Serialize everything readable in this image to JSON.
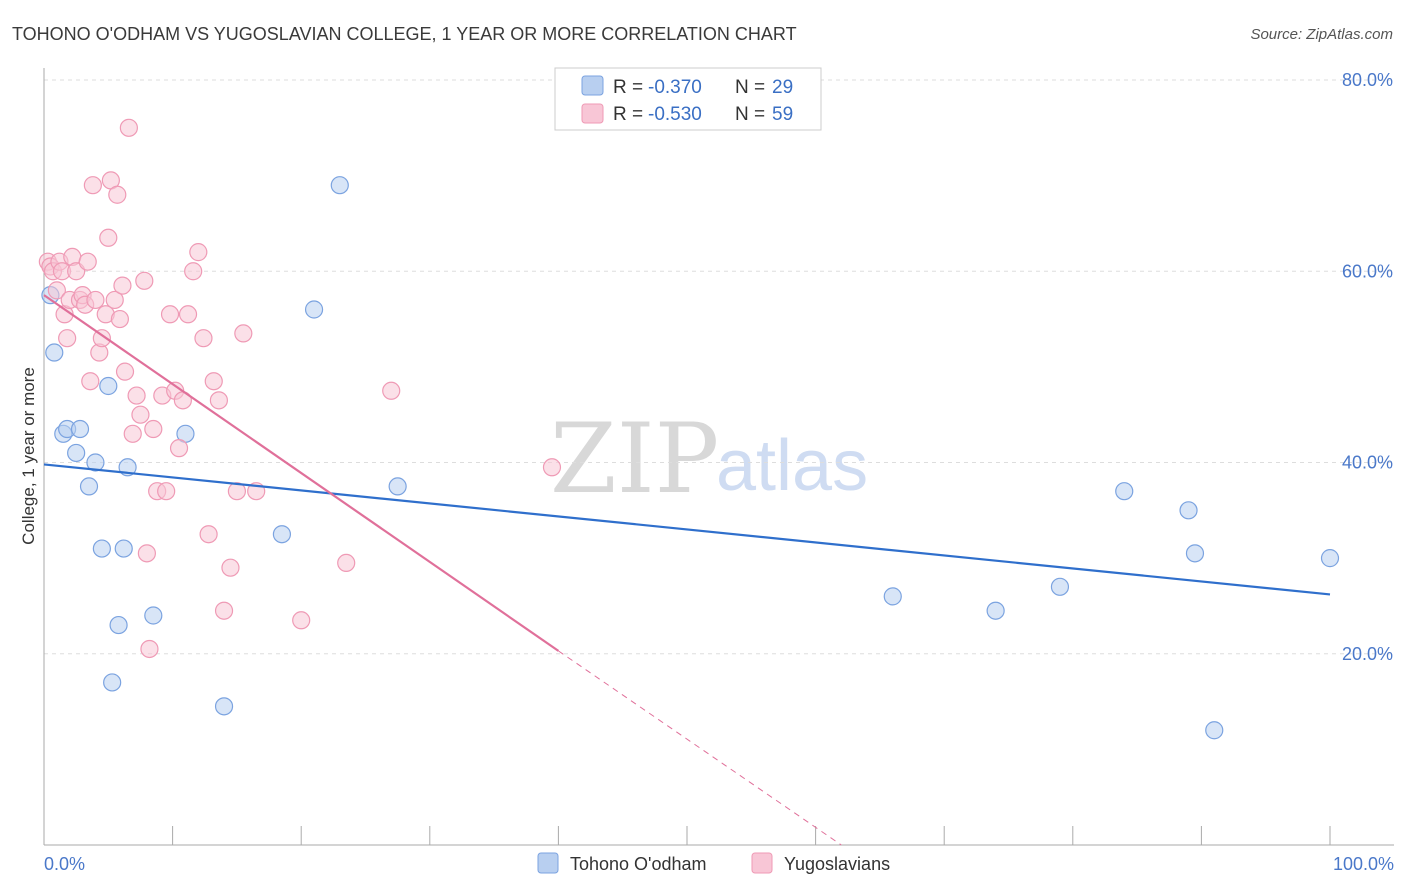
{
  "chart_data": {
    "type": "scatter",
    "title": "TOHONO O'ODHAM VS YUGOSLAVIAN COLLEGE, 1 YEAR OR MORE CORRELATION CHART",
    "source": "Source: ZipAtlas.com",
    "xlabel": "",
    "ylabel": "College, 1 year or more",
    "xlim": [
      0,
      100
    ],
    "ylim": [
      0,
      80
    ],
    "x_tick_labels": [
      "0.0%",
      "100.0%"
    ],
    "y_ticks": [
      {
        "value": 20,
        "label": "20.0%"
      },
      {
        "value": 40,
        "label": "40.0%"
      },
      {
        "value": 60,
        "label": "60.0%"
      },
      {
        "value": 80,
        "label": "80.0%"
      }
    ],
    "watermark": {
      "part1": "ZIP",
      "part2": "atlas"
    },
    "legend": {
      "r_label": "R = ",
      "n_label": "N = ",
      "entries": [
        {
          "r": "-0.370",
          "n": "29"
        },
        {
          "r": "-0.530",
          "n": "59"
        }
      ]
    },
    "series": [
      {
        "name": "Tohono O'odham",
        "color": "#7ba3e0",
        "fill": "#b8cff0",
        "line_color": "#2f6fcc",
        "trend": {
          "x0": 0,
          "y0": 39.8,
          "x1": 100,
          "y1": 26.2
        },
        "points": [
          [
            0.5,
            57.5
          ],
          [
            0.8,
            51.5
          ],
          [
            1.5,
            43.0
          ],
          [
            1.8,
            43.5
          ],
          [
            2.5,
            41.0
          ],
          [
            2.8,
            43.5
          ],
          [
            3.5,
            37.5
          ],
          [
            4.0,
            40.0
          ],
          [
            4.5,
            31.0
          ],
          [
            5.3,
            17.0
          ],
          [
            5.8,
            23.0
          ],
          [
            6.2,
            31.0
          ],
          [
            6.5,
            39.5
          ],
          [
            8.5,
            24.0
          ],
          [
            11.0,
            43.0
          ],
          [
            14.0,
            14.5
          ],
          [
            18.5,
            32.5
          ],
          [
            21.0,
            56.0
          ],
          [
            23.0,
            69.0
          ],
          [
            27.5,
            37.5
          ],
          [
            66.0,
            26.0
          ],
          [
            74.0,
            24.5
          ],
          [
            79.0,
            27.0
          ],
          [
            84.0,
            37.0
          ],
          [
            89.0,
            35.0
          ],
          [
            89.5,
            30.5
          ],
          [
            91.0,
            12.0
          ],
          [
            100.0,
            30.0
          ],
          [
            5.0,
            48.0
          ]
        ]
      },
      {
        "name": "Yugoslavians",
        "color": "#ef9ab5",
        "fill": "#f8c6d6",
        "line_color": "#e0709a",
        "trend": {
          "x0": 0,
          "y0": 57.5,
          "x1": 40,
          "y1": 20.3
        },
        "trend_dashed": {
          "x0": 40,
          "y0": 20.3,
          "x1": 62,
          "y1": 0
        },
        "points": [
          [
            0.3,
            61.0
          ],
          [
            0.5,
            60.5
          ],
          [
            0.7,
            60.0
          ],
          [
            1.0,
            58.0
          ],
          [
            1.2,
            61.0
          ],
          [
            1.4,
            60.0
          ],
          [
            1.6,
            55.5
          ],
          [
            1.8,
            53.0
          ],
          [
            2.0,
            57.0
          ],
          [
            2.2,
            61.5
          ],
          [
            2.5,
            60.0
          ],
          [
            2.8,
            57.0
          ],
          [
            3.0,
            57.5
          ],
          [
            3.2,
            56.5
          ],
          [
            3.4,
            61.0
          ],
          [
            3.6,
            48.5
          ],
          [
            3.8,
            69.0
          ],
          [
            4.0,
            57.0
          ],
          [
            4.3,
            51.5
          ],
          [
            4.5,
            53.0
          ],
          [
            4.8,
            55.5
          ],
          [
            5.0,
            63.5
          ],
          [
            5.2,
            69.5
          ],
          [
            5.5,
            57.0
          ],
          [
            5.7,
            68.0
          ],
          [
            5.9,
            55.0
          ],
          [
            6.1,
            58.5
          ],
          [
            6.3,
            49.5
          ],
          [
            6.6,
            75.0
          ],
          [
            6.9,
            43.0
          ],
          [
            7.2,
            47.0
          ],
          [
            7.5,
            45.0
          ],
          [
            7.8,
            59.0
          ],
          [
            8.0,
            30.5
          ],
          [
            8.2,
            20.5
          ],
          [
            8.5,
            43.5
          ],
          [
            8.8,
            37.0
          ],
          [
            9.2,
            47.0
          ],
          [
            9.5,
            37.0
          ],
          [
            9.8,
            55.5
          ],
          [
            10.2,
            47.5
          ],
          [
            10.5,
            41.5
          ],
          [
            10.8,
            46.5
          ],
          [
            11.2,
            55.5
          ],
          [
            11.6,
            60.0
          ],
          [
            12.0,
            62.0
          ],
          [
            12.4,
            53.0
          ],
          [
            12.8,
            32.5
          ],
          [
            13.2,
            48.5
          ],
          [
            13.6,
            46.5
          ],
          [
            14.0,
            24.5
          ],
          [
            14.5,
            29.0
          ],
          [
            15.0,
            37.0
          ],
          [
            15.5,
            53.5
          ],
          [
            16.5,
            37.0
          ],
          [
            20.0,
            23.5
          ],
          [
            23.5,
            29.5
          ],
          [
            27.0,
            47.5
          ],
          [
            39.5,
            39.5
          ]
        ]
      }
    ]
  }
}
